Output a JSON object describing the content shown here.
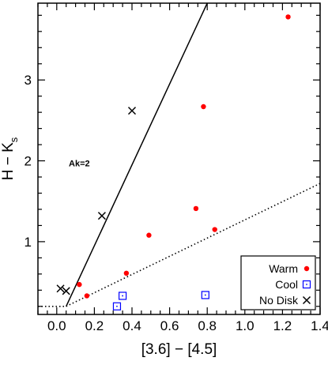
{
  "chart_data": {
    "type": "scatter",
    "xlabel": "[3.6] − [4.5]",
    "ylabel": "H − K",
    "ylabel_subscript": "s",
    "xlim": [
      -0.1,
      1.4
    ],
    "ylim": [
      0.1,
      3.95
    ],
    "xticks": [
      0.0,
      0.2,
      0.4,
      0.6,
      0.8,
      1.0,
      1.2,
      1.4
    ],
    "xtick_labels": [
      "0.0",
      "0.2",
      "0.4",
      "0.6",
      "0.8",
      "1.0",
      "1.2",
      "1.4"
    ],
    "yticks": [
      1,
      2,
      3
    ],
    "ytick_labels": [
      "1",
      "2",
      "3"
    ],
    "grid": false,
    "legend_position": "bottom-right",
    "series": [
      {
        "name": "Warm",
        "marker": "filled-circle",
        "color": "#ff0000",
        "points": [
          {
            "x": 0.12,
            "y": 0.47
          },
          {
            "x": 0.16,
            "y": 0.33
          },
          {
            "x": 0.37,
            "y": 0.61
          },
          {
            "x": 0.49,
            "y": 1.08
          },
          {
            "x": 0.74,
            "y": 1.41
          },
          {
            "x": 0.78,
            "y": 2.67
          },
          {
            "x": 0.84,
            "y": 1.15
          },
          {
            "x": 1.23,
            "y": 3.78
          }
        ]
      },
      {
        "name": "Cool",
        "marker": "open-square",
        "color": "#0000ff",
        "points": [
          {
            "x": 0.32,
            "y": 0.2
          },
          {
            "x": 0.35,
            "y": 0.33
          },
          {
            "x": 0.79,
            "y": 0.34
          }
        ]
      },
      {
        "name": "No Disk",
        "marker": "x",
        "color": "#000000",
        "points": [
          {
            "x": 0.02,
            "y": 0.42
          },
          {
            "x": 0.05,
            "y": 0.39
          },
          {
            "x": 0.24,
            "y": 1.32
          },
          {
            "x": 0.4,
            "y": 2.62
          }
        ]
      }
    ],
    "lines": [
      {
        "style": "solid",
        "from": {
          "x": 0.05,
          "y": 0.2
        },
        "to": {
          "x": 0.8,
          "y": 3.95
        }
      },
      {
        "style": "dotted",
        "from": {
          "x": -0.1,
          "y": 0.2
        },
        "to": {
          "x": 0.05,
          "y": 0.2
        }
      },
      {
        "style": "dotted",
        "from": {
          "x": 0.05,
          "y": 0.2
        },
        "to": {
          "x": 1.4,
          "y": 1.72
        }
      }
    ],
    "annotations": [
      {
        "text": "Ak=2",
        "x": 0.12,
        "y": 1.93
      }
    ]
  }
}
